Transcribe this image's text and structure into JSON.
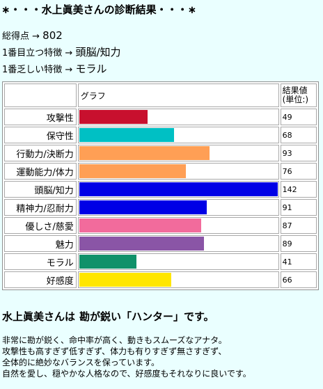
{
  "title": "∗・・・水上眞美さんの診断結果・・・∗",
  "summary": {
    "total": {
      "label": "総得点 →",
      "value": "802"
    },
    "top": {
      "label": "1番目立つ特徴 →",
      "value": "頭脳/知力"
    },
    "lowest": {
      "label": "1番乏しい特徴 →",
      "value": "モラル"
    }
  },
  "table": {
    "header_graph": "グラフ",
    "header_value_line1": "結果値",
    "header_value_line2": "(単位:)",
    "max_value": 142,
    "rows": [
      {
        "label": "攻撃性",
        "value": 49,
        "color": "#c8102e"
      },
      {
        "label": "保守性",
        "value": 68,
        "color": "#00c0c4"
      },
      {
        "label": "行動力/決断力",
        "value": 93,
        "color": "#ff9f55"
      },
      {
        "label": "運動能力/体力",
        "value": 76,
        "color": "#ff9f55"
      },
      {
        "label": "頭脳/知力",
        "value": 142,
        "color": "#0000e6"
      },
      {
        "label": "精神力/忍耐力",
        "value": 91,
        "color": "#0000e6"
      },
      {
        "label": "優しさ/慈愛",
        "value": 87,
        "color": "#f26b9c"
      },
      {
        "label": "魅力",
        "value": 89,
        "color": "#8a55a6"
      },
      {
        "label": "モラル",
        "value": 41,
        "color": "#10916a"
      },
      {
        "label": "好感度",
        "value": 66,
        "color": "#ffe600"
      }
    ]
  },
  "result_type": {
    "name": "水上眞美さんは",
    "type": "勘が鋭い「ハンター」です。"
  },
  "description": [
    "非常に勘が鋭く、命中率が高く、動きもスムーズなアナタ。",
    "攻撃性も高すぎず低すぎず、体力も有りすぎず無さすぎず、",
    "全体的に絶妙なバランスを保っています。",
    "自然を愛し、穏やかな人格なので、好感度もそれなりに良いです。"
  ]
}
